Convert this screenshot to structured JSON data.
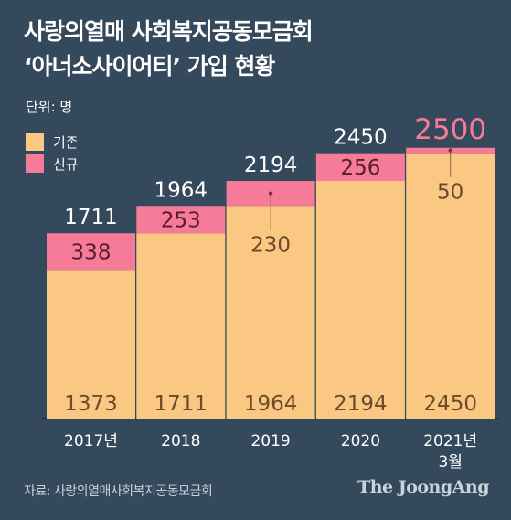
{
  "title_line1": "사랑의열매 사회복지공동모금회",
  "title_line2": "‘아너소사이어티’ 가입 현황",
  "unit": "단위: 명",
  "source": "자료: 사랑의열매사회복지공동모금회",
  "brand": "The JoongAng",
  "colors": {
    "existing": "#fbc884",
    "new": "#f57b99",
    "background": "#34495b"
  },
  "chart_data": {
    "type": "bar",
    "stacked": true,
    "categories": [
      "2017년",
      "2018",
      "2019",
      "2020",
      "2021년\n3월"
    ],
    "series": [
      {
        "name": "기존",
        "values": [
          1373,
          1711,
          1964,
          2194,
          2450
        ]
      },
      {
        "name": "신규",
        "values": [
          338,
          253,
          230,
          256,
          50
        ]
      }
    ],
    "totals": [
      1711,
      1964,
      2194,
      2450,
      2500
    ],
    "legend": [
      "기존",
      "신규"
    ],
    "legend_position": "top-left",
    "ylim": [
      0,
      2600
    ],
    "grid": false
  }
}
